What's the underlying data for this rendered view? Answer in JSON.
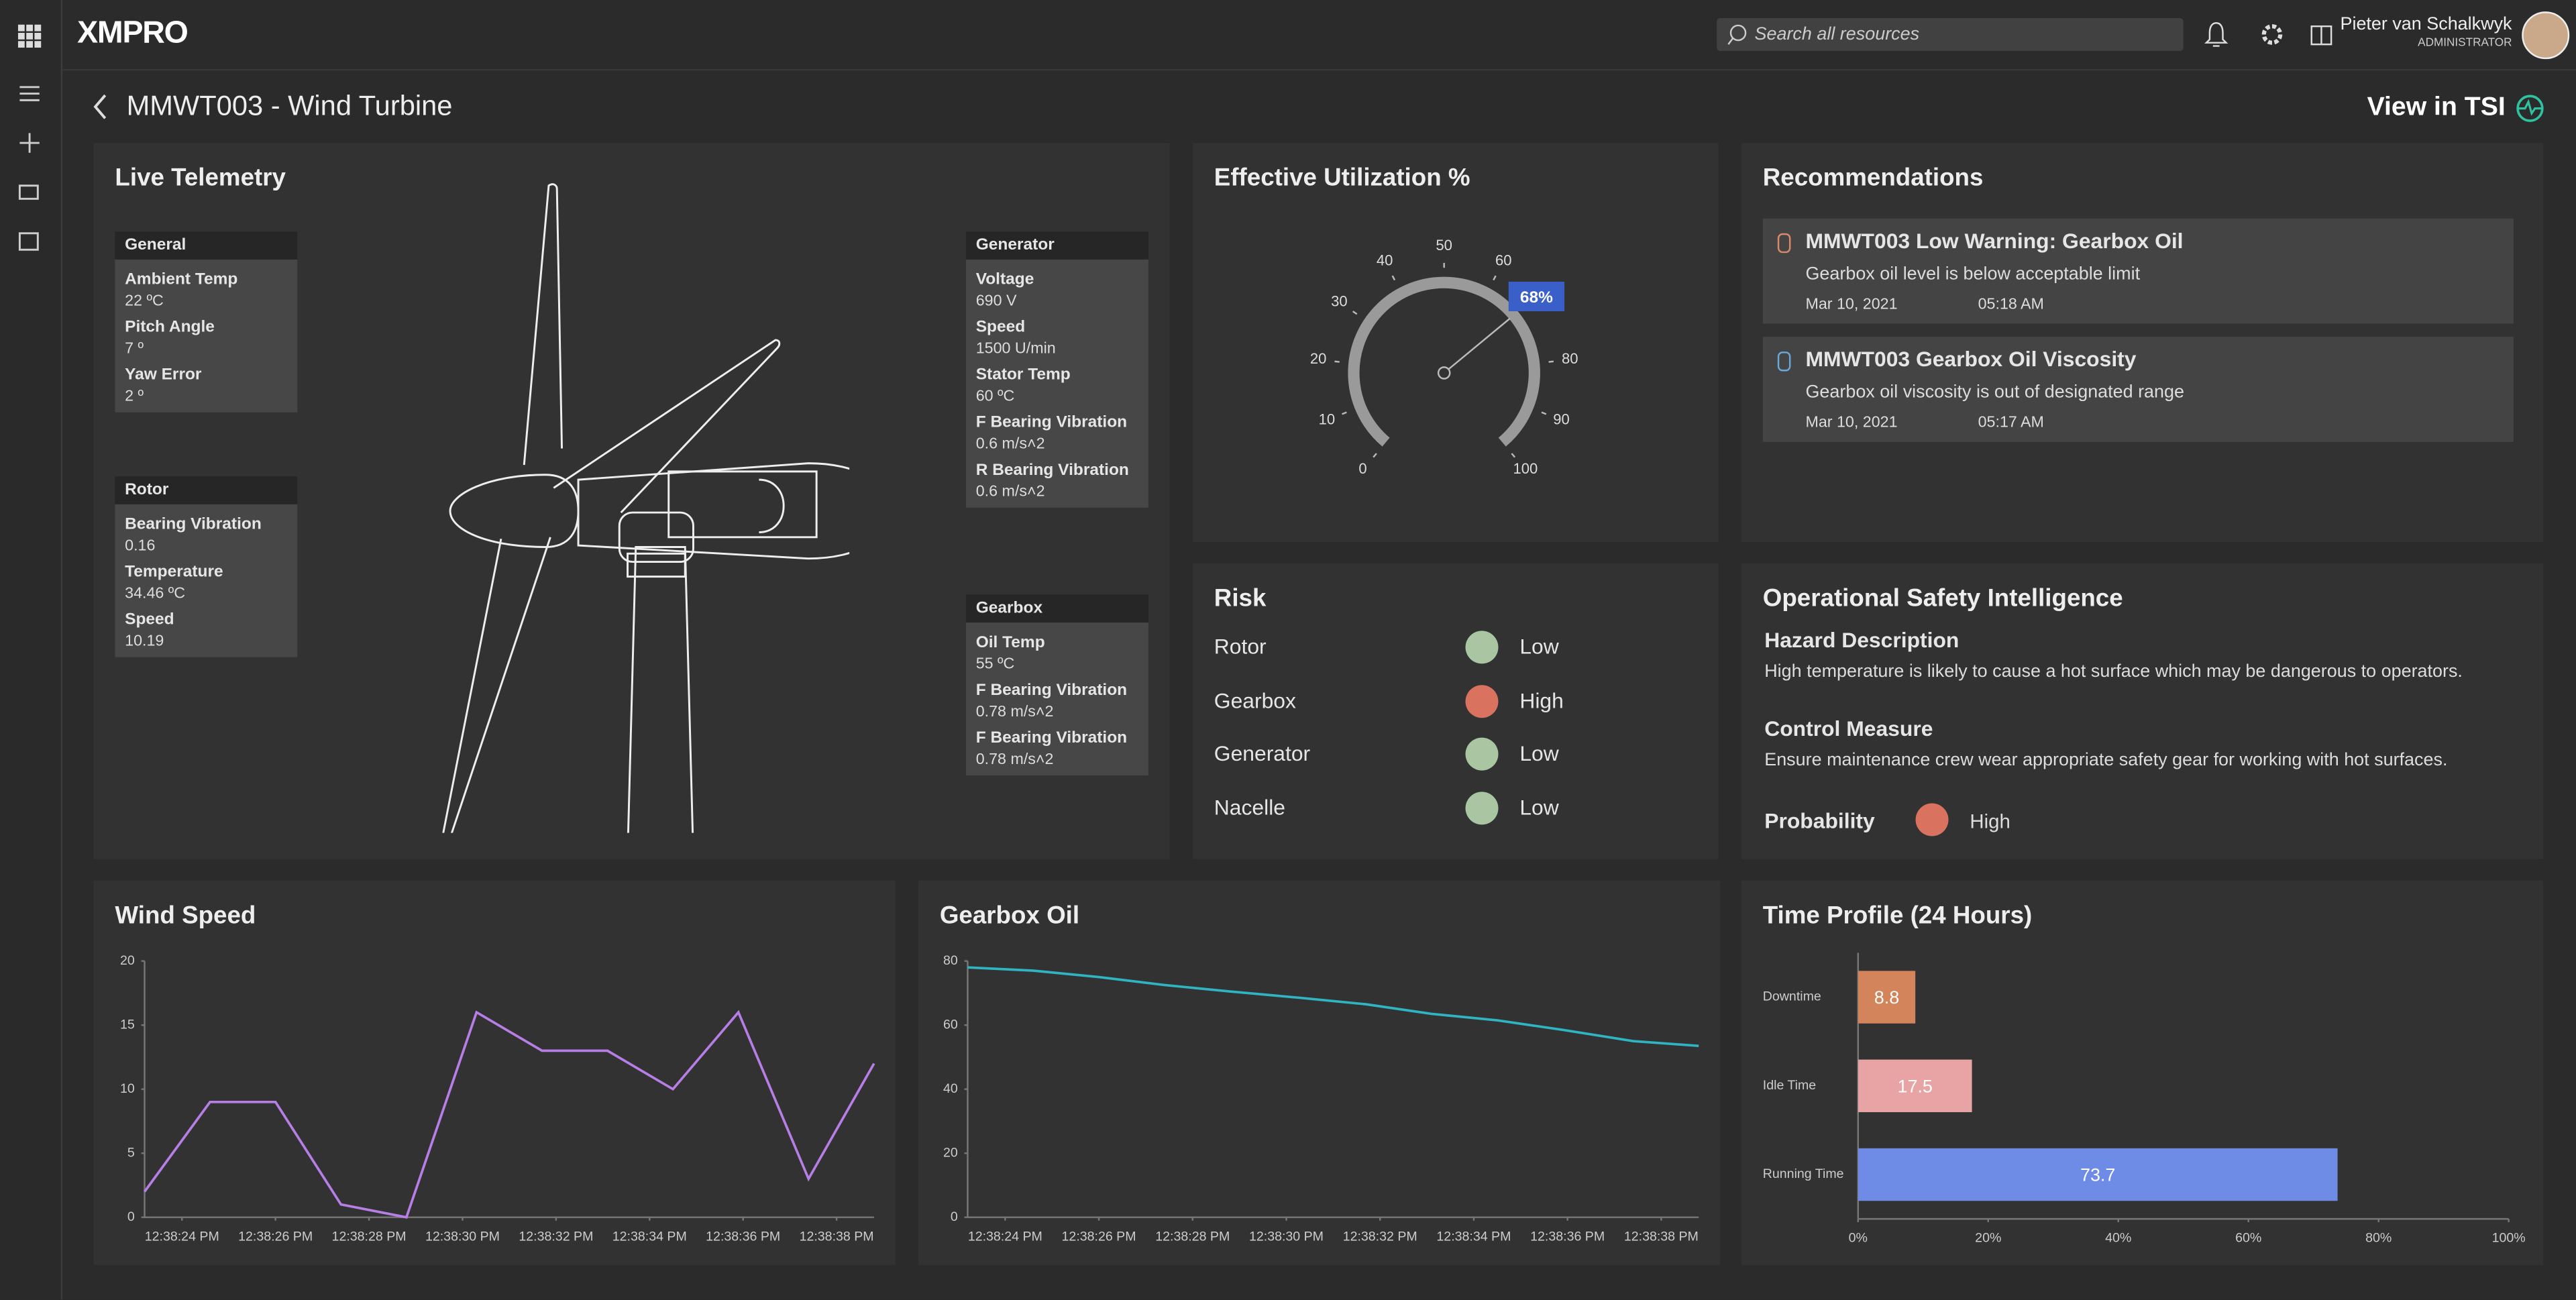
{
  "header": {
    "logo": "XMPRO",
    "search_placeholder": "Search all resources",
    "user_name": "Pieter van Schalkwyk",
    "user_role": "ADMINISTRATOR"
  },
  "page": {
    "title": "MMWT003 - Wind Turbine",
    "view_link": "View in TSI"
  },
  "telemetry": {
    "title": "Live Telemetry",
    "groups": [
      {
        "name": "General",
        "items": [
          {
            "label": "Ambient Temp",
            "value": "22 ºC"
          },
          {
            "label": "Pitch Angle",
            "value": "7 º"
          },
          {
            "label": "Yaw Error",
            "value": "2 º"
          }
        ]
      },
      {
        "name": "Rotor",
        "items": [
          {
            "label": "Bearing Vibration",
            "value": "0.16"
          },
          {
            "label": "Temperature",
            "value": "34.46 ºC"
          },
          {
            "label": "Speed",
            "value": "10.19"
          }
        ]
      },
      {
        "name": "Generator",
        "items": [
          {
            "label": "Voltage",
            "value": "690 V"
          },
          {
            "label": "Speed",
            "value": "1500 U/min"
          },
          {
            "label": "Stator Temp",
            "value": "60 ºC"
          },
          {
            "label": "F Bearing Vibration",
            "value": "0.6 m/s˄2"
          },
          {
            "label": "R Bearing Vibration",
            "value": "0.6 m/s˄2"
          }
        ]
      },
      {
        "name": "Gearbox",
        "items": [
          {
            "label": "Oil Temp",
            "value": "55 ºC"
          },
          {
            "label": "F Bearing Vibration",
            "value": "0.78 m/s˄2"
          },
          {
            "label": "F Bearing Vibration",
            "value": "0.78 m/s˄2"
          }
        ]
      }
    ]
  },
  "utilization": {
    "title": "Effective Utilization %",
    "value": 68,
    "value_label": "68%",
    "min": 0,
    "max": 100,
    "ticks": [
      0,
      10,
      20,
      30,
      40,
      50,
      60,
      80,
      90,
      100
    ]
  },
  "recommendations": {
    "title": "Recommendations",
    "items": [
      {
        "title": "MMWT003 Low Warning: Gearbox Oil",
        "description": "Gearbox oil level is below acceptable limit",
        "date": "Mar 10, 2021",
        "time": "05:18 AM"
      },
      {
        "title": "MMWT003 Gearbox Oil Viscosity",
        "description": "Gearbox oil viscosity is out of designated range",
        "date": "Mar 10, 2021",
        "time": "05:17 AM"
      }
    ]
  },
  "risk": {
    "title": "Risk",
    "rows": [
      {
        "name": "Rotor",
        "level": "Low",
        "color": "#a9c5a2"
      },
      {
        "name": "Gearbox",
        "level": "High",
        "color": "#d9735f"
      },
      {
        "name": "Generator",
        "level": "Low",
        "color": "#a9c5a2"
      },
      {
        "name": "Nacelle",
        "level": "Low",
        "color": "#a9c5a2"
      }
    ]
  },
  "safety": {
    "title": "Operational Safety Intelligence",
    "hazard_heading": "Hazard Description",
    "hazard_text": "High temperature is likely to cause a hot surface which may be dangerous to operators.",
    "control_heading": "Control Measure",
    "control_text": "Ensure maintenance crew wear appropriate safety gear for working with hot surfaces.",
    "probability_heading": "Probability",
    "probability_level": "High",
    "probability_color": "#d9735f"
  },
  "chart_data": [
    {
      "type": "line",
      "title": "Wind Speed",
      "color": "#b77fe6",
      "x": [
        23.2,
        24.6,
        26.0,
        27.4,
        28.8,
        30.3,
        31.7,
        33.1,
        34.5,
        35.9,
        37.4,
        38.8
      ],
      "values": [
        2,
        9,
        9,
        1,
        0,
        16,
        13,
        13,
        10,
        16,
        3,
        12
      ],
      "xlim": [
        23.2,
        38.8
      ],
      "xticks": [
        {
          "value": 24,
          "label": "12:38:24 PM"
        },
        {
          "value": 26,
          "label": "12:38:26 PM"
        },
        {
          "value": 28,
          "label": "12:38:28 PM"
        },
        {
          "value": 30,
          "label": "12:38:30 PM"
        },
        {
          "value": 32,
          "label": "12:38:32 PM"
        },
        {
          "value": 34,
          "label": "12:38:34 PM"
        },
        {
          "value": 36,
          "label": "12:38:36 PM"
        },
        {
          "value": 38,
          "label": "12:38:38 PM"
        }
      ],
      "ylim": [
        0,
        20
      ],
      "yticks": [
        0,
        5,
        10,
        15,
        20
      ]
    },
    {
      "type": "line",
      "title": "Gearbox Oil",
      "color": "#2fb5c1",
      "x": [
        23.2,
        24.6,
        26.0,
        27.4,
        28.8,
        30.3,
        31.7,
        33.1,
        34.5,
        35.9,
        37.4,
        38.8
      ],
      "values": [
        78,
        77,
        75,
        72.5,
        70.5,
        68.5,
        66.5,
        63.5,
        61.5,
        58.5,
        55,
        53.5
      ],
      "xlim": [
        23.2,
        38.8
      ],
      "xticks": [
        {
          "value": 24,
          "label": "12:38:24 PM"
        },
        {
          "value": 26,
          "label": "12:38:26 PM"
        },
        {
          "value": 28,
          "label": "12:38:28 PM"
        },
        {
          "value": 30,
          "label": "12:38:30 PM"
        },
        {
          "value": 32,
          "label": "12:38:32 PM"
        },
        {
          "value": 34,
          "label": "12:38:34 PM"
        },
        {
          "value": 36,
          "label": "12:38:36 PM"
        },
        {
          "value": 38,
          "label": "12:38:38 PM"
        }
      ],
      "ylim": [
        0,
        80
      ],
      "yticks": [
        0,
        20,
        40,
        60,
        80
      ]
    },
    {
      "type": "hbar",
      "title": "Time Profile (24 Hours)",
      "categories": [
        "Downtime",
        "Idle Time",
        "Running Time"
      ],
      "values": [
        8.8,
        17.5,
        73.7
      ],
      "colors": [
        "#d4845a",
        "#e8a4a4",
        "#6e8ce6"
      ],
      "xlim": [
        0,
        100
      ],
      "xticks": [
        {
          "value": 0,
          "label": "0%"
        },
        {
          "value": 20,
          "label": "20%"
        },
        {
          "value": 40,
          "label": "40%"
        },
        {
          "value": 60,
          "label": "60%"
        },
        {
          "value": 80,
          "label": "80%"
        },
        {
          "value": 100,
          "label": "100%"
        }
      ]
    }
  ]
}
